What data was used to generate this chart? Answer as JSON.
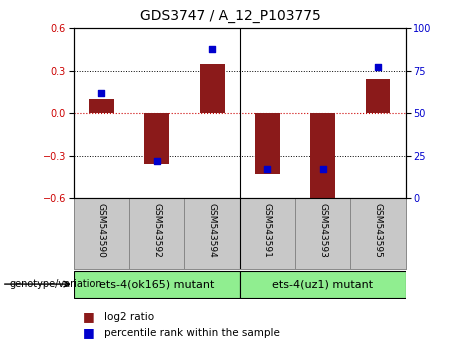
{
  "title": "GDS3747 / A_12_P103775",
  "samples": [
    "GSM543590",
    "GSM543592",
    "GSM543594",
    "GSM543591",
    "GSM543593",
    "GSM543595"
  ],
  "log2_ratio": [
    0.1,
    -0.36,
    0.35,
    -0.43,
    -0.63,
    0.24
  ],
  "percentile": [
    62,
    22,
    88,
    17,
    17,
    77
  ],
  "groups": [
    {
      "label": "ets-4(ok165) mutant",
      "indices": [
        0,
        1,
        2
      ],
      "color": "#90EE90"
    },
    {
      "label": "ets-4(uz1) mutant",
      "indices": [
        3,
        4,
        5
      ],
      "color": "#90EE90"
    }
  ],
  "bar_color": "#8B1A1A",
  "dot_color": "#0000CD",
  "ylim_left": [
    -0.6,
    0.6
  ],
  "ylim_right": [
    0,
    100
  ],
  "yticks_left": [
    -0.6,
    -0.3,
    0,
    0.3,
    0.6
  ],
  "yticks_right": [
    0,
    25,
    50,
    75,
    100
  ],
  "left_tick_color": "#CC0000",
  "right_tick_color": "#0000CD",
  "bg_color": "#FFFFFF",
  "plot_bg_color": "#FFFFFF",
  "label_bg_color": "#C8C8C8",
  "zero_line_color": "#CC0000",
  "genotype_label": "genotype/variation",
  "legend_log2": "log2 ratio",
  "legend_percentile": "percentile rank within the sample",
  "title_fontsize": 10,
  "tick_fontsize": 7,
  "sample_fontsize": 6.5,
  "group_fontsize": 8,
  "legend_fontsize": 7.5,
  "bar_width": 0.45
}
